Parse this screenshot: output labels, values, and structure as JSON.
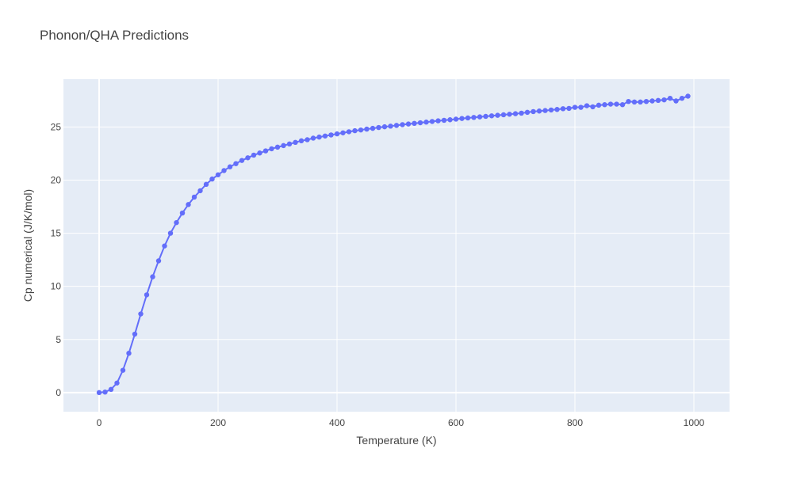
{
  "chart_data": {
    "type": "line",
    "title": "Phonon/QHA Predictions",
    "xlabel": "Temperature (K)",
    "ylabel": "Cp numerical (J/K/mol)",
    "xlim": [
      -60,
      1060
    ],
    "ylim": [
      -1.8,
      29.5
    ],
    "xticks": [
      0,
      200,
      400,
      600,
      800,
      1000
    ],
    "yticks": [
      0,
      5,
      10,
      15,
      20,
      25
    ],
    "grid": true,
    "legend": "none",
    "colors": {
      "series": "#636efa",
      "plot_bg": "#e5ecf6",
      "grid": "#ffffff",
      "text": "#444444"
    },
    "series": [
      {
        "x": [
          0,
          10,
          20,
          30,
          40,
          50,
          60,
          70,
          80,
          90,
          100,
          110,
          120,
          130,
          140,
          150,
          160,
          170,
          180,
          190,
          200,
          210,
          220,
          230,
          240,
          250,
          260,
          270,
          280,
          290,
          300,
          310,
          320,
          330,
          340,
          350,
          360,
          370,
          380,
          390,
          400,
          410,
          420,
          430,
          440,
          450,
          460,
          470,
          480,
          490,
          500,
          510,
          520,
          530,
          540,
          550,
          560,
          570,
          580,
          590,
          600,
          610,
          620,
          630,
          640,
          650,
          660,
          670,
          680,
          690,
          700,
          710,
          720,
          730,
          740,
          750,
          760,
          770,
          780,
          790,
          800,
          810,
          820,
          830,
          840,
          850,
          860,
          870,
          880,
          890,
          900,
          910,
          920,
          930,
          940,
          950,
          960,
          970,
          980,
          990
        ],
        "y": [
          0,
          0.05,
          0.3,
          0.9,
          2.1,
          3.7,
          5.5,
          7.4,
          9.2,
          10.9,
          12.4,
          13.8,
          15.0,
          16.0,
          16.9,
          17.7,
          18.4,
          19.0,
          19.6,
          20.1,
          20.5,
          20.9,
          21.25,
          21.55,
          21.85,
          22.1,
          22.35,
          22.55,
          22.75,
          22.95,
          23.1,
          23.25,
          23.4,
          23.55,
          23.7,
          23.8,
          23.95,
          24.05,
          24.15,
          24.25,
          24.35,
          24.45,
          24.55,
          24.65,
          24.72,
          24.8,
          24.87,
          24.95,
          25.02,
          25.08,
          25.15,
          25.22,
          25.28,
          25.34,
          25.4,
          25.46,
          25.52,
          25.58,
          25.63,
          25.68,
          25.74,
          25.8,
          25.85,
          25.9,
          25.95,
          26.0,
          26.05,
          26.1,
          26.15,
          26.2,
          26.25,
          26.3,
          26.38,
          26.45,
          26.5,
          26.55,
          26.6,
          26.65,
          26.72,
          26.75,
          26.85,
          26.85,
          27.0,
          26.9,
          27.05,
          27.1,
          27.15,
          27.15,
          27.1,
          27.4,
          27.35,
          27.35,
          27.4,
          27.45,
          27.5,
          27.55,
          27.7,
          27.45,
          27.7,
          27.9
        ]
      }
    ]
  }
}
